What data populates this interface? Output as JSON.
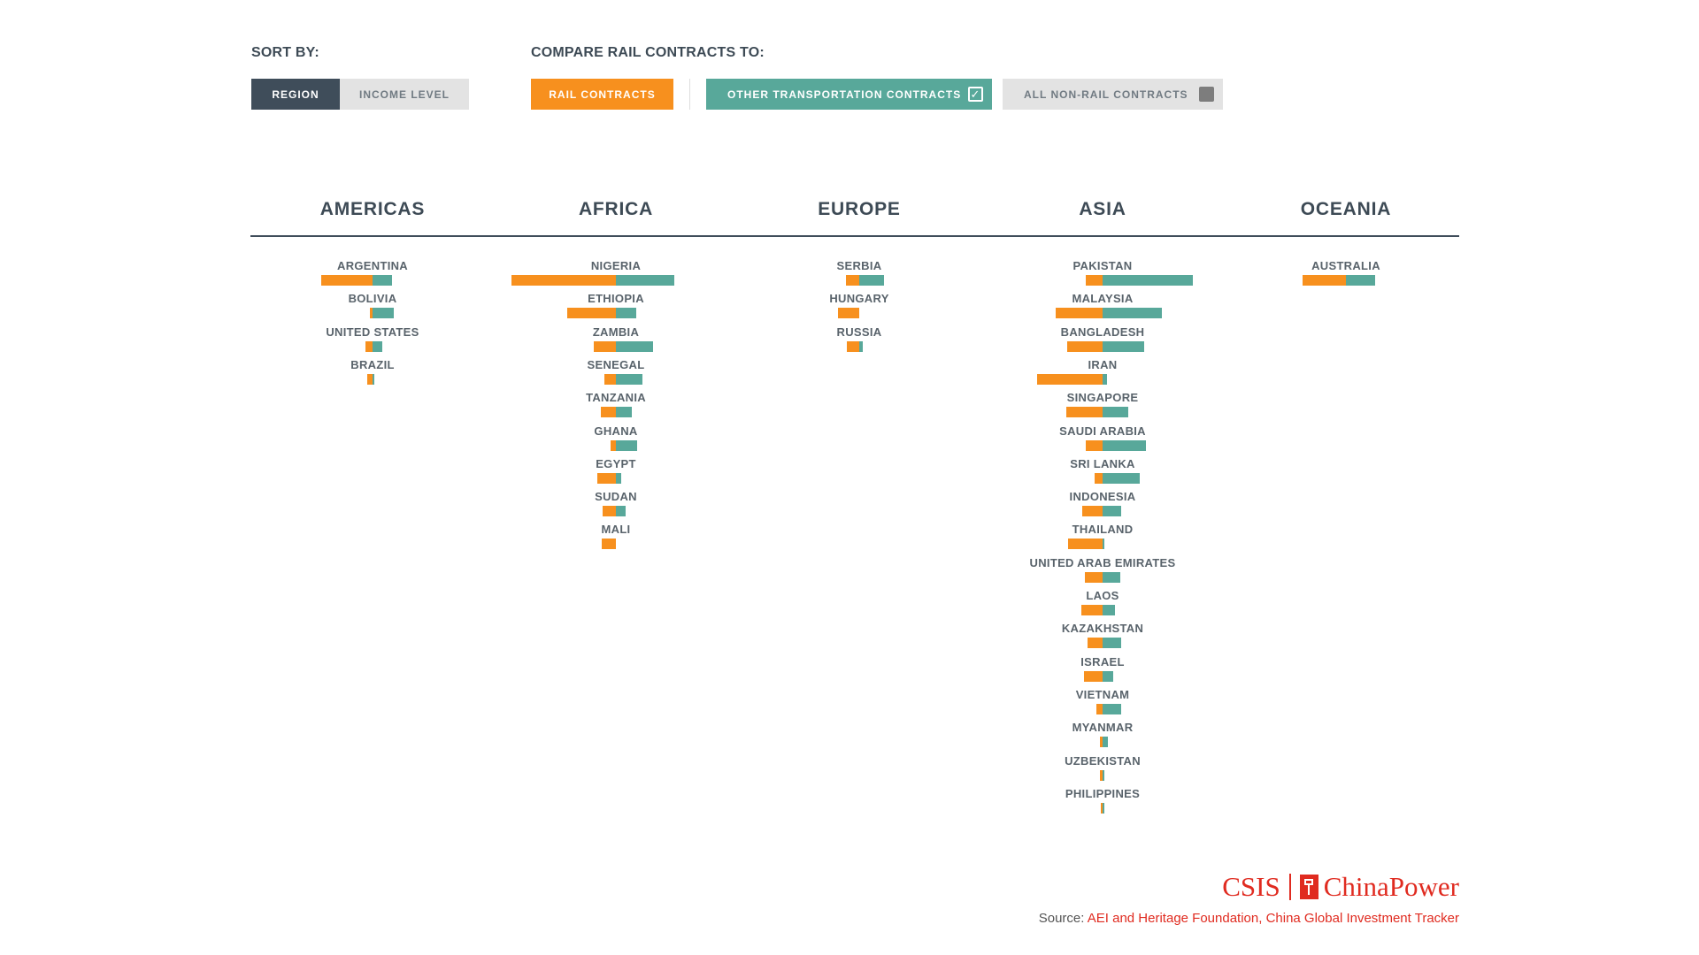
{
  "controls": {
    "sort_label": "SORT BY:",
    "sort_options": [
      "REGION",
      "INCOME LEVEL"
    ],
    "sort_selected": "REGION",
    "compare_label": "COMPARE RAIL CONTRACTS TO:",
    "compare_buttons": {
      "rail": "RAIL CONTRACTS",
      "other": "OTHER TRANSPORTATION CONTRACTS",
      "nonrail": "ALL NON-RAIL CONTRACTS"
    },
    "other_checked": true,
    "nonrail_checked": false
  },
  "colors": {
    "rail": "#f7901e",
    "other": "#58a89a",
    "accent_red": "#e02b20",
    "dark": "#3f4d5a"
  },
  "chart_data": {
    "type": "bar",
    "series_names": [
      "RAIL CONTRACTS",
      "OTHER TRANSPORTATION CONTRACTS"
    ],
    "regions": [
      {
        "name": "AMERICAS",
        "countries": [
          {
            "name": "ARGENTINA",
            "rail": 58,
            "other": 22
          },
          {
            "name": "BOLIVIA",
            "rail": 3,
            "other": 24
          },
          {
            "name": "UNITED STATES",
            "rail": 8,
            "other": 11
          },
          {
            "name": "BRAZIL",
            "rail": 6,
            "other": 2
          }
        ]
      },
      {
        "name": "AFRICA",
        "countries": [
          {
            "name": "NIGERIA",
            "rail": 118,
            "other": 66
          },
          {
            "name": "ETHIOPIA",
            "rail": 55,
            "other": 23
          },
          {
            "name": "ZAMBIA",
            "rail": 25,
            "other": 42
          },
          {
            "name": "SENEGAL",
            "rail": 13,
            "other": 30
          },
          {
            "name": "TANZANIA",
            "rail": 17,
            "other": 18
          },
          {
            "name": "GHANA",
            "rail": 6,
            "other": 24
          },
          {
            "name": "EGYPT",
            "rail": 21,
            "other": 6
          },
          {
            "name": "SUDAN",
            "rail": 15,
            "other": 11
          },
          {
            "name": "MALI",
            "rail": 16,
            "other": 0
          }
        ]
      },
      {
        "name": "EUROPE",
        "countries": [
          {
            "name": "SERBIA",
            "rail": 15,
            "other": 28
          },
          {
            "name": "HUNGARY",
            "rail": 24,
            "other": 0
          },
          {
            "name": "RUSSIA",
            "rail": 14,
            "other": 4
          }
        ]
      },
      {
        "name": "ASIA",
        "countries": [
          {
            "name": "PAKISTAN",
            "rail": 19,
            "other": 102
          },
          {
            "name": "MALAYSIA",
            "rail": 53,
            "other": 67
          },
          {
            "name": "BANGLADESH",
            "rail": 40,
            "other": 47
          },
          {
            "name": "IRAN",
            "rail": 74,
            "other": 5
          },
          {
            "name": "SINGAPORE",
            "rail": 41,
            "other": 29
          },
          {
            "name": "SAUDI ARABIA",
            "rail": 19,
            "other": 49
          },
          {
            "name": "SRI LANKA",
            "rail": 9,
            "other": 42
          },
          {
            "name": "INDONESIA",
            "rail": 23,
            "other": 21
          },
          {
            "name": "THAILAND",
            "rail": 39,
            "other": 2
          },
          {
            "name": "UNITED ARAB EMIRATES",
            "rail": 20,
            "other": 20
          },
          {
            "name": "LAOS",
            "rail": 24,
            "other": 14
          },
          {
            "name": "KAZAKHSTAN",
            "rail": 17,
            "other": 21
          },
          {
            "name": "ISRAEL",
            "rail": 21,
            "other": 12
          },
          {
            "name": "VIETNAM",
            "rail": 7,
            "other": 21
          },
          {
            "name": "MYANMAR",
            "rail": 3,
            "other": 6
          },
          {
            "name": "UZBEKISTAN",
            "rail": 3,
            "other": 2
          },
          {
            "name": "PHILIPPINES",
            "rail": 2,
            "other": 2
          }
        ]
      },
      {
        "name": "OCEANIA",
        "countries": [
          {
            "name": "AUSTRALIA",
            "rail": 49,
            "other": 33
          }
        ]
      }
    ]
  },
  "footer": {
    "logo_left": "CSIS",
    "logo_right": "ChinaPower",
    "source_prefix": "Source: ",
    "source_text": "AEI and Heritage Foundation, China Global Investment Tracker"
  }
}
